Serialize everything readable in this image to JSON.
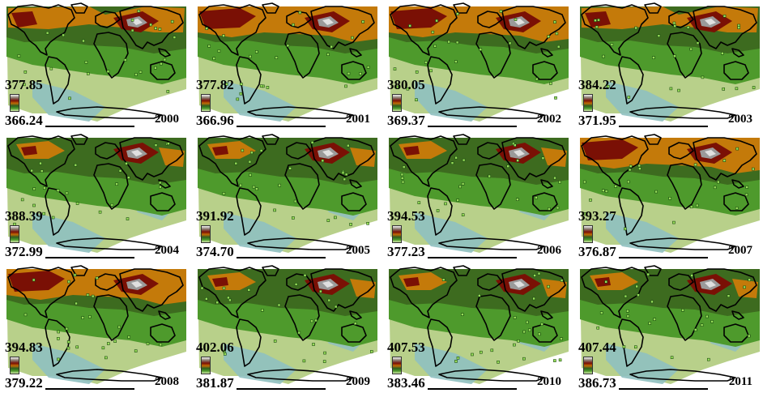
{
  "panels": [
    {
      "year": "2000",
      "max": "377.85",
      "min": "366.24",
      "palette": "a"
    },
    {
      "year": "2001",
      "max": "377.82",
      "min": "366.96",
      "palette": "b"
    },
    {
      "year": "2002",
      "max": "380.05",
      "min": "369.37",
      "palette": "b"
    },
    {
      "year": "2003",
      "max": "384.22",
      "min": "371.95",
      "palette": "a"
    },
    {
      "year": "2004",
      "max": "388.39",
      "min": "372.99",
      "palette": "c"
    },
    {
      "year": "2005",
      "max": "391.92",
      "min": "374.70",
      "palette": "c"
    },
    {
      "year": "2006",
      "max": "394.53",
      "min": "377.23",
      "palette": "c"
    },
    {
      "year": "2007",
      "max": "393.27",
      "min": "376.87",
      "palette": "b"
    },
    {
      "year": "2008",
      "max": "394.83",
      "min": "379.22",
      "palette": "b"
    },
    {
      "year": "2009",
      "max": "402.06",
      "min": "381.87",
      "palette": "c"
    },
    {
      "year": "2010",
      "max": "407.53",
      "min": "383.46",
      "palette": "c"
    },
    {
      "year": "2011",
      "max": "407.44",
      "min": "386.73",
      "palette": "c"
    }
  ],
  "colors": {
    "dark_red": "#7a1005",
    "orange": "#c47a0a",
    "olive": "#5a6e2a",
    "dark_green": "#3d6b1f",
    "green": "#4e9a2c",
    "pale_green": "#b8d08a",
    "light_blue": "#8fc0c0",
    "gray_peak": "#9a9a9a"
  }
}
